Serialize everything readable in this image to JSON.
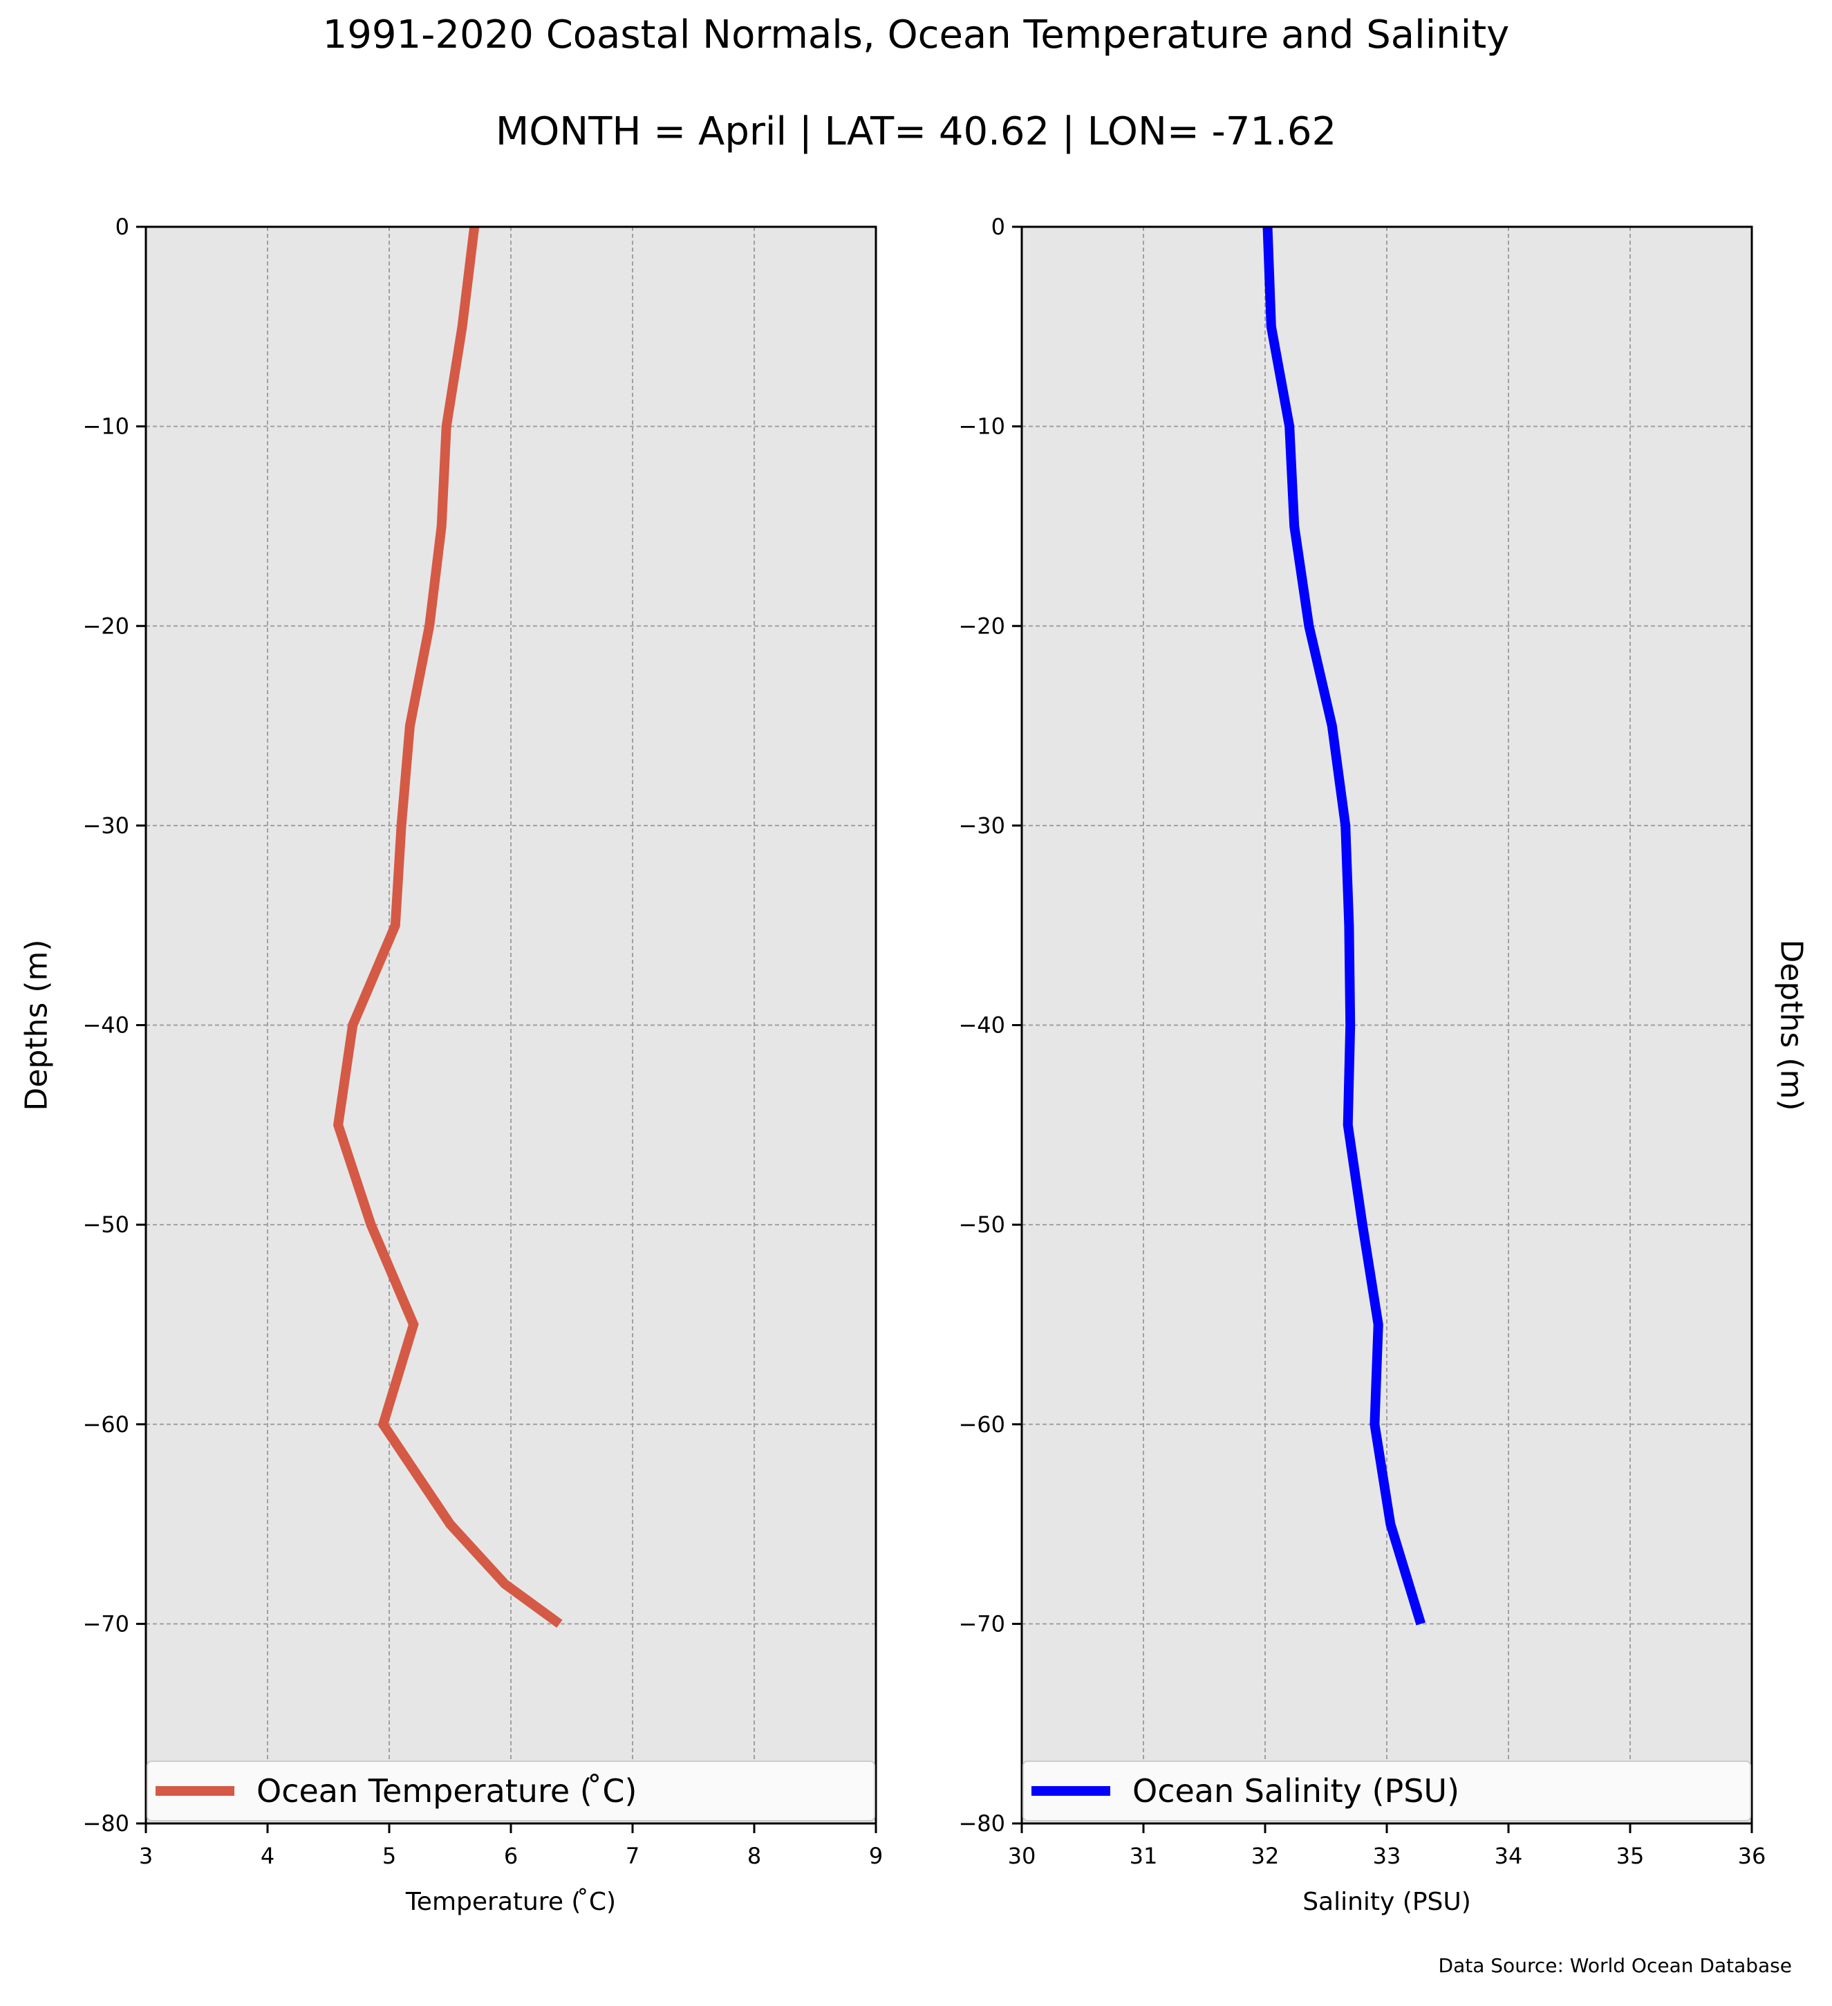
{
  "figure": {
    "title": "1991-2020 Coastal Normals, Ocean Temperature and Salinity",
    "subtitle": "MONTH = April | LAT= 40.62 | LON= -71.62",
    "source": "Data Source: World Ocean Database",
    "background": "#e6e6e6",
    "grid_color": "#a0a0a0"
  },
  "chart_data": [
    {
      "type": "line",
      "xlabel": "Temperature ($^\\circ$C)",
      "xlabel_display": "Temperature ( ̊C)",
      "ylabel": "Depths (m)",
      "xlim": [
        3,
        9
      ],
      "ylim": [
        -80,
        0
      ],
      "xticks": [
        3,
        4,
        5,
        6,
        7,
        8,
        9
      ],
      "yticks": [
        0,
        -10,
        -20,
        -30,
        -40,
        -50,
        -60,
        -70,
        -80
      ],
      "ytick_labels": [
        "0",
        "−10",
        "−20",
        "−30",
        "−40",
        "−50",
        "−60",
        "−70",
        "−80"
      ],
      "grid": true,
      "legend_position": "bottom",
      "series": [
        {
          "name": "Ocean Temperature ( ̊C)",
          "color": "#d45a46",
          "x": [
            5.7,
            5.6,
            5.47,
            5.43,
            5.33,
            5.17,
            5.1,
            5.05,
            4.7,
            4.58,
            4.85,
            5.2,
            4.95,
            5.5,
            5.95,
            6.4
          ],
          "y": [
            0,
            -5,
            -10,
            -15,
            -20,
            -25,
            -30,
            -35,
            -40,
            -45,
            -50,
            -55,
            -60,
            -65,
            -68,
            -70
          ]
        }
      ]
    },
    {
      "type": "line",
      "xlabel": "Salinity (PSU)",
      "ylabel": "Depths (m)",
      "xlim": [
        30,
        36
      ],
      "ylim": [
        -80,
        0
      ],
      "xticks": [
        30,
        31,
        32,
        33,
        34,
        35,
        36
      ],
      "yticks": [
        0,
        -10,
        -20,
        -30,
        -40,
        -50,
        -60,
        -70,
        -80
      ],
      "ytick_labels": [
        "0",
        "−10",
        "−20",
        "−30",
        "−40",
        "−50",
        "−60",
        "−70",
        "−80"
      ],
      "grid": true,
      "legend_position": "bottom",
      "series": [
        {
          "name": "Ocean Salinity (PSU)",
          "color": "#0000ff",
          "x": [
            32.02,
            32.05,
            32.2,
            32.24,
            32.36,
            32.55,
            32.66,
            32.69,
            32.7,
            32.68,
            32.8,
            32.93,
            32.9,
            33.03,
            33.28
          ],
          "y": [
            0,
            -5,
            -10,
            -15,
            -20,
            -25,
            -30,
            -35,
            -40,
            -45,
            -50,
            -55,
            -60,
            -65,
            -70
          ]
        }
      ]
    }
  ]
}
